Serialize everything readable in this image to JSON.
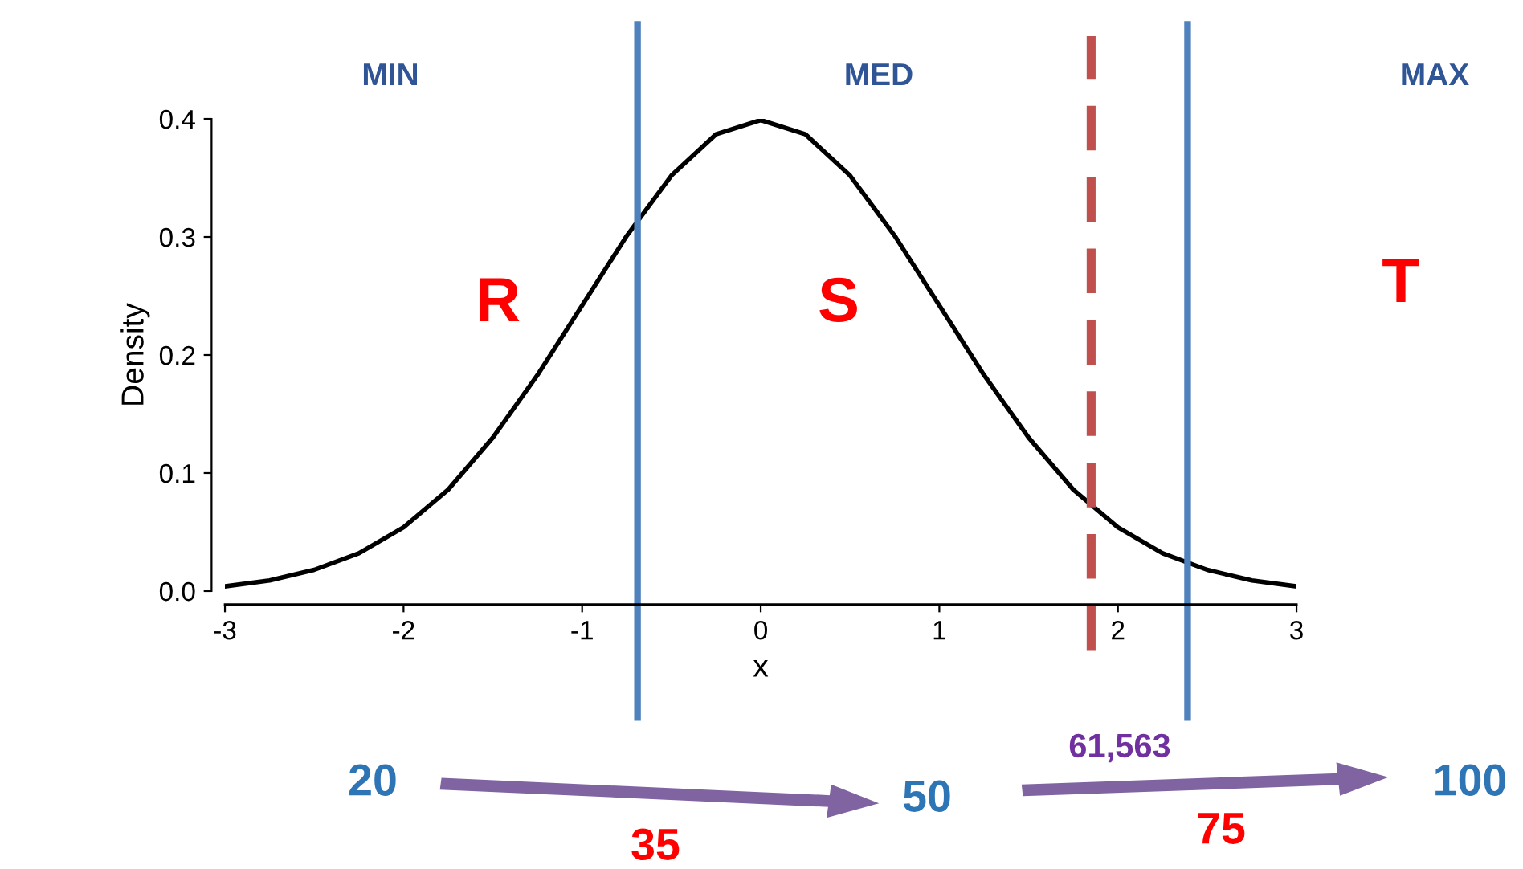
{
  "chart_data": {
    "type": "line",
    "xlabel": "x",
    "ylabel": "Density",
    "x": [
      -3,
      -2.75,
      -2.5,
      -2.25,
      -2,
      -1.75,
      -1.5,
      -1.25,
      -1,
      -0.75,
      -0.5,
      -0.25,
      0,
      0.25,
      0.5,
      0.75,
      1,
      1.25,
      1.5,
      1.75,
      2,
      2.25,
      2.5,
      2.75,
      3
    ],
    "series": [
      {
        "color": "#000000",
        "values": [
          0.004,
          0.009,
          0.018,
          0.032,
          0.054,
          0.086,
          0.13,
          0.183,
          0.242,
          0.301,
          0.352,
          0.387,
          0.399,
          0.387,
          0.352,
          0.301,
          0.242,
          0.183,
          0.13,
          0.086,
          0.054,
          0.032,
          0.018,
          0.009,
          0.004
        ]
      }
    ],
    "xlim": [
      -3,
      3
    ],
    "ylim": [
      0,
      0.4
    ],
    "xticks": [
      -3,
      -2,
      -1,
      0,
      1,
      2,
      3
    ],
    "yticks": [
      {
        "value": 0,
        "label": "0.0"
      },
      {
        "value": 0.1,
        "label": "0.1"
      },
      {
        "value": 0.2,
        "label": "0.2"
      },
      {
        "value": 0.3,
        "label": "0.3"
      },
      {
        "value": 0.4,
        "label": "0.4"
      }
    ],
    "ref_lines": [
      {
        "axis": "x",
        "value": -0.69,
        "color": "#4f81bd",
        "line_style": "solid"
      },
      {
        "axis": "x",
        "value": 2.39,
        "color": "#4f81bd",
        "line_style": "solid"
      },
      {
        "axis": "x",
        "value": 1.85,
        "color": "#c0504d",
        "line_style": "dashed"
      }
    ],
    "annotations": [
      "MIN",
      "MED",
      "MAX",
      "R",
      "S",
      "T",
      "20",
      "50",
      "100",
      "35",
      "75",
      "61,563"
    ],
    "grid": false,
    "legend": false
  }
}
